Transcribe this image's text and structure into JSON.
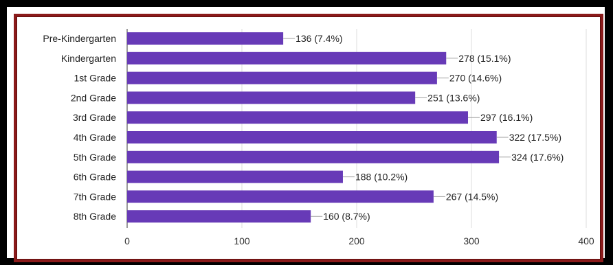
{
  "colors": {
    "bar": "#673ab7",
    "grid": "#dddddd",
    "axis": "#333333",
    "leader": "#9e9e9e",
    "frame_border": "#8b1a1a"
  },
  "chart_data": {
    "type": "bar",
    "orientation": "horizontal",
    "categories": [
      "Pre-Kindergarten",
      "Kindergarten",
      "1st Grade",
      "2nd Grade",
      "3rd Grade",
      "4th Grade",
      "5th Grade",
      "6th Grade",
      "7th Grade",
      "8th Grade"
    ],
    "values": [
      136,
      278,
      270,
      251,
      297,
      322,
      324,
      188,
      267,
      160
    ],
    "data_labels": [
      "136 (7.4%)",
      "278 (15.1%)",
      "270 (14.6%)",
      "251 (13.6%)",
      "297 (16.1%)",
      "322 (17.5%)",
      "324 (17.6%)",
      "188 (10.2%)",
      "267 (14.5%)",
      "160 (8.7%)"
    ],
    "x_ticks": [
      "0",
      "100",
      "200",
      "300",
      "400"
    ],
    "xlim": [
      0,
      400
    ],
    "grid": true,
    "legend": "none"
  }
}
